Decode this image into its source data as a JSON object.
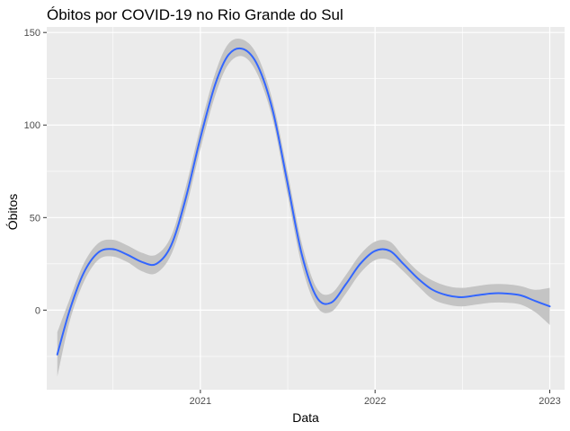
{
  "chart_data": {
    "type": "line",
    "title": "Óbitos por COVID-19 no Rio Grande do Sul",
    "xlabel": "Data",
    "ylabel": "Óbitos",
    "xlim": [
      "2020-02-15",
      "2023-02-01"
    ],
    "ylim": [
      -43,
      153
    ],
    "x_ticks": [
      "2021-01-01",
      "2022-01-01",
      "2023-01-01"
    ],
    "x_tick_labels": [
      "2021",
      "2022",
      "2023"
    ],
    "y_ticks": [
      0,
      50,
      100,
      150
    ],
    "y_tick_labels": [
      "0",
      "50",
      "100",
      "150"
    ],
    "grid": true,
    "legend": "none",
    "colors": {
      "panel": "#ebebeb",
      "grid": "#ffffff",
      "line": "#3366ff",
      "ribbon": "#c4c4c4",
      "tick": "#333333",
      "tick_text": "#4d4d4d"
    },
    "series": [
      {
        "x": [
          "2020-03-08",
          "2020-04-03",
          "2020-05-02",
          "2020-06-01",
          "2020-07-01",
          "2020-08-01",
          "2020-09-01",
          "2020-10-01",
          "2020-11-01",
          "2020-12-01",
          "2021-01-01",
          "2021-02-01",
          "2021-03-01",
          "2021-04-01",
          "2021-05-01",
          "2021-06-01",
          "2021-07-01",
          "2021-08-01",
          "2021-09-01",
          "2021-10-01",
          "2021-11-01",
          "2021-12-01",
          "2022-01-01",
          "2022-02-01",
          "2022-03-01",
          "2022-04-01",
          "2022-05-01",
          "2022-06-01",
          "2022-07-01",
          "2022-08-01",
          "2022-09-01",
          "2022-10-01",
          "2022-11-01",
          "2022-12-01",
          "2023-01-01"
        ],
        "y": [
          -24,
          0,
          20,
          31,
          33,
          30,
          26,
          25,
          35,
          60,
          93,
          122,
          138,
          141,
          132,
          108,
          70,
          30,
          7,
          4,
          14,
          25,
          32,
          32,
          25,
          17,
          11,
          8,
          7,
          8,
          9,
          9,
          8,
          5,
          2
        ],
        "lower": [
          -36,
          -6,
          15,
          27,
          29,
          26,
          21,
          20,
          30,
          54,
          87,
          116,
          133,
          137,
          127,
          103,
          64,
          24,
          2,
          -1,
          9,
          20,
          27,
          27,
          21,
          13,
          6,
          3,
          2,
          3,
          4,
          4,
          3,
          -1,
          -8
        ],
        "upper": [
          -12,
          6,
          25,
          36,
          38,
          35,
          31,
          30,
          40,
          66,
          99,
          128,
          144,
          146,
          137,
          113,
          76,
          36,
          12,
          9,
          19,
          30,
          37,
          37,
          29,
          21,
          16,
          13,
          12,
          13,
          14,
          14,
          13,
          11,
          12
        ]
      }
    ]
  }
}
